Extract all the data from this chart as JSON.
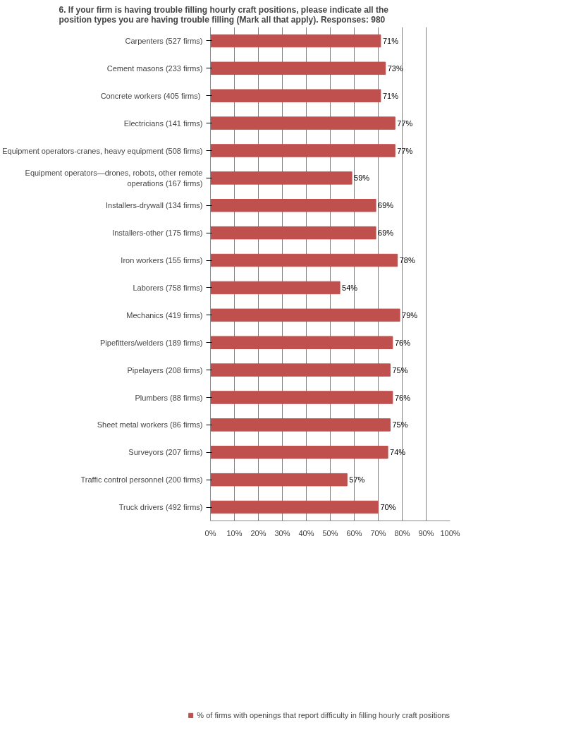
{
  "chart_data": {
    "type": "bar",
    "orientation": "horizontal",
    "title": "6.    If your firm is having trouble filling hourly craft positions, please indicate all the position types you are having trouble filling (Mark all that apply). Responses: 980",
    "categories": [
      "Carpenters (527 firms)",
      "Cement masons (233 firms)",
      "Concrete workers  (405 firms)",
      "Electricians (141 firms)",
      "Equipment operators-cranes, heavy equipment (508 firms)",
      "Equipment operators—drones, robots, other remote operations (167 firms)",
      "Installers-drywall (134 firms)",
      "Installers-other (175 firms)",
      "Iron workers (155 firms)",
      "Laborers (758 firms)",
      "Mechanics (419 firms)",
      "Pipefitters/welders (189 firms)",
      "Pipelayers (208 firms)",
      "Plumbers (88 firms)",
      "Sheet metal workers (86 firms)",
      "Surveyors (207 firms)",
      "Traffic control personnel (200 firms)",
      "Truck drivers (492 firms)"
    ],
    "series": [
      {
        "name": "% of firms with openings that report difficulty in filling hourly craft positions",
        "color": "#c0504d",
        "values": [
          71,
          73,
          71,
          77,
          77,
          59,
          69,
          69,
          78,
          54,
          79,
          76,
          75,
          76,
          75,
          74,
          57,
          70
        ],
        "value_labels": [
          "71%",
          "73%",
          "71%",
          "77%",
          "77%",
          "59%",
          "69%",
          "69%",
          "78%",
          "54%",
          "79%",
          "76%",
          "75%",
          "76%",
          "75%",
          "74%",
          "57%",
          "70%"
        ]
      }
    ],
    "xlim": [
      0,
      100
    ],
    "xticks": [
      {
        "value": 0,
        "label": "0%"
      },
      {
        "value": 10,
        "label": "10%"
      },
      {
        "value": 20,
        "label": "20%"
      },
      {
        "value": 30,
        "label": "30%"
      },
      {
        "value": 40,
        "label": "40%"
      },
      {
        "value": 50,
        "label": "50%"
      },
      {
        "value": 60,
        "label": "60%"
      },
      {
        "value": 70,
        "label": "70%"
      },
      {
        "value": 80,
        "label": "80%"
      },
      {
        "value": 90,
        "label": "90%"
      },
      {
        "value": 100,
        "label": "100%"
      }
    ],
    "grid": "x",
    "legend": "bottom"
  }
}
